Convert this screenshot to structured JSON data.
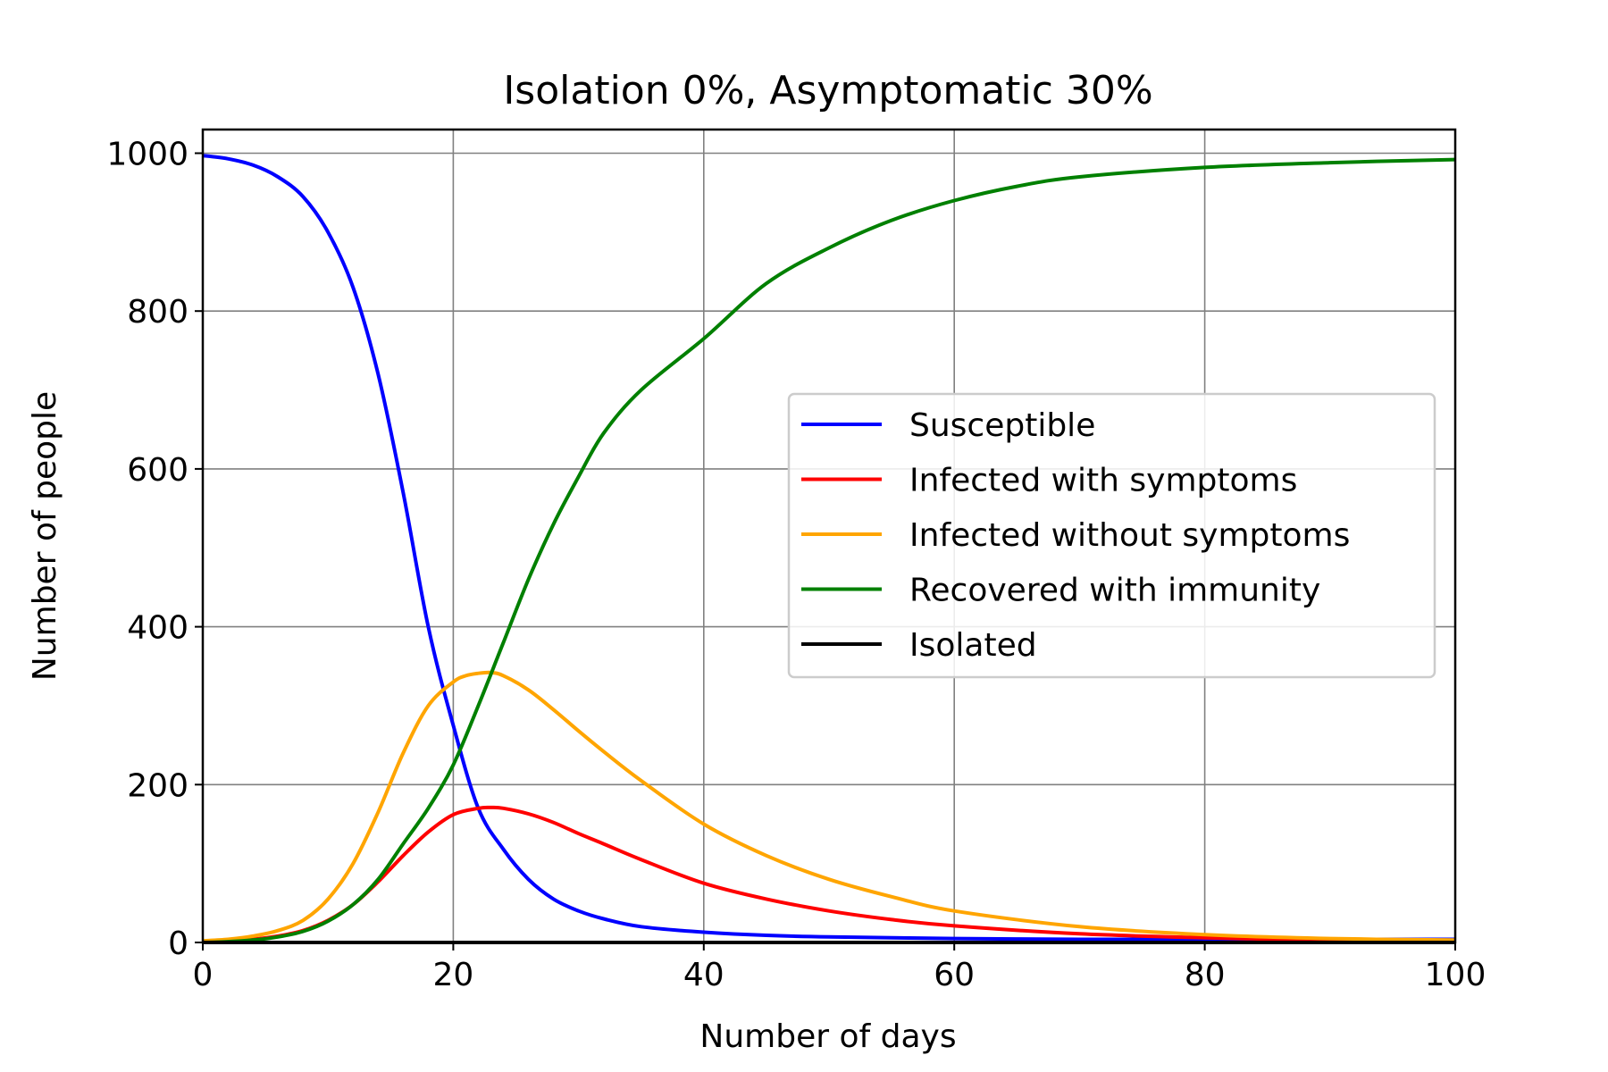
{
  "chart_data": {
    "type": "line",
    "title": "Isolation 0%, Asymptomatic 30%",
    "xlabel": "Number of days",
    "ylabel": "Number of people",
    "xlim": [
      0,
      100
    ],
    "ylim": [
      0,
      1030
    ],
    "xticks": [
      0,
      20,
      40,
      60,
      80,
      100
    ],
    "yticks": [
      0,
      200,
      400,
      600,
      800,
      1000
    ],
    "grid": true,
    "legend_position": "center-right",
    "series": [
      {
        "name": "Susceptible",
        "color": "#0000ff",
        "x": [
          0,
          2,
          4,
          6,
          8,
          10,
          12,
          14,
          16,
          18,
          20,
          22,
          24,
          26,
          28,
          30,
          32,
          35,
          40,
          45,
          50,
          60,
          70,
          80,
          90,
          100
        ],
        "y": [
          997,
          993,
          985,
          970,
          945,
          900,
          830,
          720,
          570,
          400,
          275,
          170,
          118,
          80,
          55,
          40,
          30,
          20,
          13,
          9,
          7,
          5,
          4,
          4,
          4,
          4
        ]
      },
      {
        "name": "Infected with symptoms",
        "color": "#ff0000",
        "x": [
          0,
          2,
          4,
          6,
          8,
          10,
          12,
          14,
          16,
          18,
          20,
          22,
          23,
          24,
          26,
          28,
          30,
          32,
          35,
          40,
          45,
          50,
          55,
          60,
          70,
          80,
          90,
          100
        ],
        "y": [
          1,
          2,
          4,
          8,
          15,
          28,
          48,
          77,
          110,
          140,
          162,
          170,
          171,
          170,
          163,
          152,
          138,
          125,
          105,
          75,
          55,
          40,
          29,
          21,
          11,
          6,
          3,
          2
        ]
      },
      {
        "name": "Infected without symptoms",
        "color": "#ffa500",
        "x": [
          0,
          2,
          4,
          6,
          8,
          10,
          12,
          14,
          16,
          18,
          20,
          21,
          22,
          23,
          24,
          26,
          28,
          30,
          32,
          35,
          40,
          45,
          50,
          55,
          60,
          70,
          80,
          90,
          100
        ],
        "y": [
          2,
          4,
          8,
          15,
          28,
          55,
          100,
          165,
          240,
          300,
          330,
          338,
          341,
          342,
          338,
          320,
          295,
          268,
          242,
          205,
          150,
          110,
          80,
          58,
          40,
          20,
          10,
          5,
          3
        ]
      },
      {
        "name": "Recovered with immunity",
        "color": "#008000",
        "x": [
          0,
          2,
          4,
          6,
          8,
          10,
          12,
          14,
          16,
          18,
          20,
          22,
          24,
          26,
          28,
          30,
          32,
          35,
          40,
          45,
          50,
          55,
          60,
          65,
          70,
          80,
          90,
          100
        ],
        "y": [
          0,
          1,
          3,
          7,
          14,
          27,
          48,
          80,
          125,
          170,
          225,
          300,
          380,
          460,
          530,
          590,
          645,
          700,
          765,
          835,
          880,
          915,
          940,
          958,
          970,
          982,
          988,
          992
        ]
      },
      {
        "name": "Isolated",
        "color": "#000000",
        "x": [
          0,
          100
        ],
        "y": [
          0,
          0
        ]
      }
    ]
  }
}
